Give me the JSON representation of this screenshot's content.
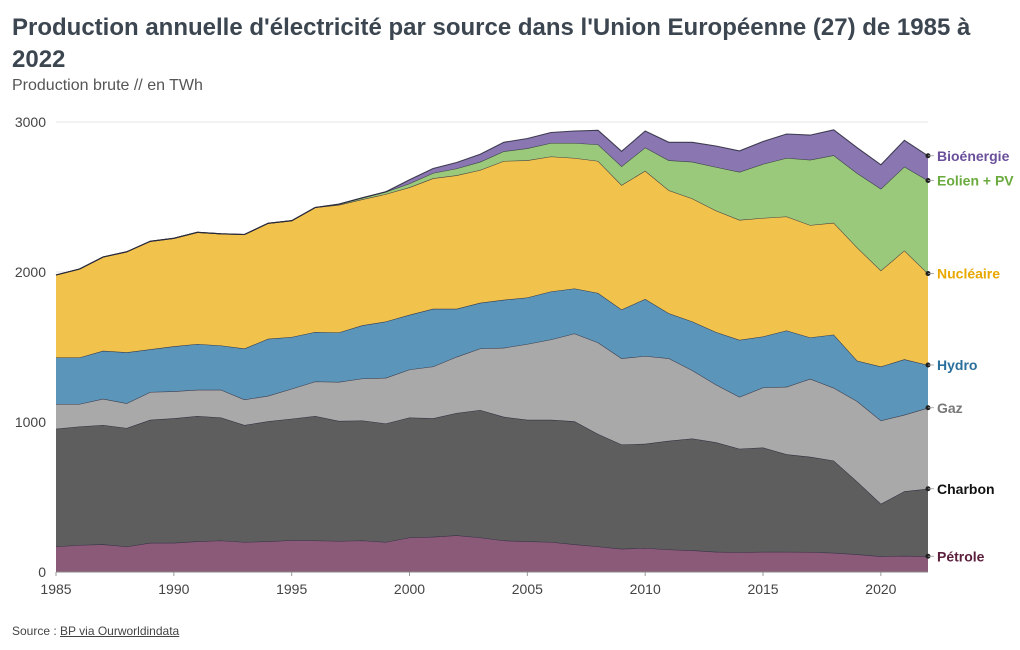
{
  "header": {
    "title": "Production annuelle d'électricité par source dans l'Union Européenne (27) de 1985 à 2022",
    "subtitle": "Production brute // en TWh"
  },
  "footer": {
    "source_prefix": "Source : ",
    "source_link": "BP via Ourworldindata"
  },
  "chart_data": {
    "type": "area",
    "stacked": true,
    "title": "Production annuelle d'électricité par source dans l'Union Européenne (27) de 1985 à 2022",
    "subtitle": "Production brute // en TWh",
    "xlabel": "",
    "ylabel": "",
    "xlim": [
      1985,
      2022
    ],
    "ylim": [
      0,
      3000
    ],
    "x_ticks": [
      1985,
      1990,
      1995,
      2000,
      2005,
      2010,
      2015,
      2020
    ],
    "y_ticks": [
      0,
      1000,
      2000,
      3000
    ],
    "grid": "horizontal",
    "legend": "direct labels at right end of series",
    "x": [
      1985,
      1986,
      1987,
      1988,
      1989,
      1990,
      1991,
      1992,
      1993,
      1994,
      1995,
      1996,
      1997,
      1998,
      1999,
      2000,
      2001,
      2002,
      2003,
      2004,
      2005,
      2006,
      2007,
      2008,
      2009,
      2010,
      2011,
      2012,
      2013,
      2014,
      2015,
      2016,
      2017,
      2018,
      2019,
      2020,
      2021,
      2022
    ],
    "series": [
      {
        "name": "Pétrole",
        "color": "#8a5a78",
        "label_color": "#5b1f3c",
        "values": [
          170,
          180,
          185,
          170,
          195,
          195,
          205,
          210,
          200,
          205,
          212,
          210,
          207,
          210,
          200,
          230,
          235,
          245,
          230,
          210,
          205,
          200,
          185,
          170,
          155,
          160,
          150,
          145,
          135,
          132,
          135,
          135,
          133,
          128,
          118,
          105,
          108,
          105
        ]
      },
      {
        "name": "Charbon",
        "color": "#5e5e5e",
        "label_color": "#111111",
        "values": [
          785,
          790,
          795,
          790,
          820,
          830,
          835,
          820,
          780,
          800,
          810,
          830,
          800,
          800,
          790,
          800,
          790,
          815,
          850,
          825,
          810,
          815,
          820,
          750,
          695,
          695,
          725,
          745,
          730,
          690,
          695,
          650,
          635,
          615,
          485,
          350,
          430,
          450
        ]
      },
      {
        "name": "Gaz",
        "color": "#a9a9a9",
        "label_color": "#777777",
        "values": [
          165,
          150,
          175,
          165,
          185,
          180,
          175,
          185,
          170,
          170,
          200,
          230,
          260,
          280,
          305,
          320,
          345,
          375,
          410,
          460,
          505,
          535,
          585,
          610,
          575,
          585,
          550,
          455,
          385,
          345,
          400,
          450,
          520,
          485,
          535,
          555,
          510,
          540
        ]
      },
      {
        "name": "Hydro",
        "color": "#5b96ba",
        "label_color": "#2a6f9b",
        "values": [
          310,
          310,
          320,
          340,
          285,
          300,
          305,
          295,
          340,
          380,
          345,
          330,
          330,
          355,
          375,
          365,
          385,
          320,
          305,
          320,
          310,
          320,
          300,
          330,
          325,
          380,
          300,
          325,
          350,
          380,
          340,
          375,
          275,
          355,
          270,
          360,
          370,
          285
        ]
      },
      {
        "name": "Nucléaire",
        "color": "#f1c24c",
        "label_color": "#e8a800",
        "values": [
          550,
          590,
          625,
          670,
          720,
          720,
          745,
          745,
          760,
          770,
          775,
          830,
          850,
          840,
          850,
          850,
          870,
          890,
          885,
          925,
          915,
          900,
          870,
          880,
          830,
          855,
          820,
          820,
          810,
          800,
          790,
          760,
          750,
          745,
          755,
          640,
          725,
          610
        ]
      },
      {
        "name": "Eolien + PV",
        "color": "#9bc97b",
        "label_color": "#6aaa3e",
        "values": [
          0,
          0,
          0,
          0,
          0,
          0,
          0,
          0,
          0,
          0,
          0,
          0,
          5,
          10,
          15,
          25,
          35,
          45,
          55,
          65,
          80,
          90,
          100,
          110,
          125,
          155,
          200,
          245,
          290,
          320,
          360,
          390,
          435,
          450,
          495,
          545,
          560,
          620
        ]
      },
      {
        "name": "Bioénergie",
        "color": "#8a76b0",
        "label_color": "#6a4f9b",
        "values": [
          0,
          0,
          0,
          0,
          0,
          0,
          0,
          0,
          0,
          0,
          0,
          0,
          0,
          0,
          0,
          25,
          30,
          40,
          50,
          60,
          65,
          70,
          80,
          95,
          100,
          110,
          120,
          130,
          140,
          140,
          150,
          160,
          165,
          170,
          170,
          160,
          175,
          165
        ]
      }
    ]
  }
}
